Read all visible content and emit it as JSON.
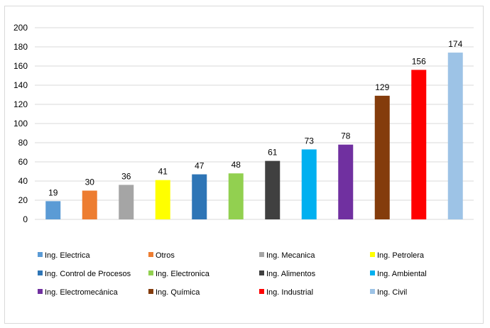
{
  "chart_data": {
    "type": "bar",
    "title": "",
    "xlabel": "",
    "ylabel": "",
    "ylim": [
      0,
      200
    ],
    "ytick_step": 20,
    "grid": true,
    "legend_position": "bottom",
    "categories": [
      "Ing. Electrica",
      "Otros",
      "Ing. Mecanica",
      "Ing. Petrolera",
      "Ing. Control de Procesos",
      "Ing. Electronica",
      "Ing. Alimentos",
      "Ing. Ambiental",
      "Ing. Electromecánica",
      "Ing. Química",
      "Ing. Industrial",
      "Ing. Civil"
    ],
    "values": [
      19,
      30,
      36,
      41,
      47,
      48,
      61,
      73,
      78,
      129,
      156,
      174
    ],
    "colors": [
      "#5b9bd5",
      "#ed7d31",
      "#a5a5a5",
      "#ffff00",
      "#2e75b6",
      "#92d050",
      "#404040",
      "#00b0f0",
      "#7030a0",
      "#843c0c",
      "#ff0000",
      "#9dc3e6"
    ]
  }
}
